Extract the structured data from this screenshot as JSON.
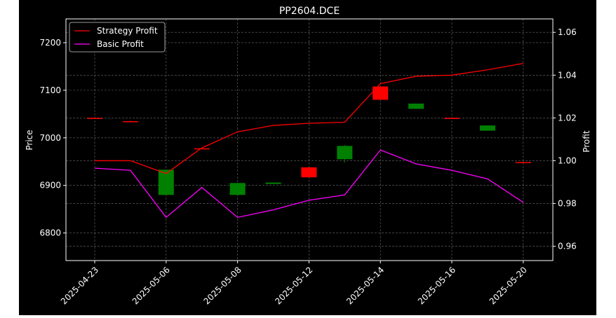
{
  "chart_data": {
    "type": "line",
    "title": "PP2604.DCE",
    "xlabel": "",
    "ylabel_left": "Price",
    "ylabel_right": "Profit",
    "x_tick_labels": [
      "2025-04-23",
      "2025-05-06",
      "2025-05-08",
      "2025-05-12",
      "2025-05-14",
      "2025-05-16",
      "2025-05-20"
    ],
    "ylim_left": [
      6742,
      7250
    ],
    "yticks_left": [
      6800,
      6900,
      7000,
      7100,
      7200
    ],
    "ylim_right": [
      0.9533,
      1.0663
    ],
    "yticks_right": [
      "0.96",
      "0.98",
      "1.00",
      "1.02",
      "1.04",
      "1.06"
    ],
    "grid": true,
    "legend_position": "top-left",
    "candles": [
      {
        "i": 0,
        "open": 7042,
        "close": 7042,
        "high": 7043,
        "low": 7041,
        "color": "#ff0000"
      },
      {
        "i": 1,
        "open": 7035,
        "close": 7035,
        "high": 7036,
        "low": 7034,
        "color": "#ff0000"
      },
      {
        "i": 2,
        "open": 6880,
        "close": 6933,
        "high": 6933,
        "low": 6880,
        "color": "#008000"
      },
      {
        "i": 3,
        "open": 6978,
        "close": 6978,
        "high": 6979,
        "low": 6977,
        "color": "#ff0000"
      },
      {
        "i": 4,
        "open": 6880,
        "close": 6905,
        "high": 6905,
        "low": 6880,
        "color": "#008000"
      },
      {
        "i": 5,
        "open": 6903,
        "close": 6906,
        "high": 6906,
        "low": 6903,
        "color": "#008000"
      },
      {
        "i": 6,
        "open": 6938,
        "close": 6917,
        "high": 6938,
        "low": 6917,
        "color": "#ff0000"
      },
      {
        "i": 7,
        "open": 6955,
        "close": 6983,
        "high": 6985,
        "low": 6948,
        "color": "#008000"
      },
      {
        "i": 8,
        "open": 7108,
        "close": 7080,
        "high": 7108,
        "low": 7080,
        "color": "#ff0000"
      },
      {
        "i": 9,
        "open": 7061,
        "close": 7072,
        "high": 7072,
        "low": 7061,
        "color": "#008000"
      },
      {
        "i": 10,
        "open": 7042,
        "close": 7042,
        "high": 7043,
        "low": 7041,
        "color": "#ff0000"
      },
      {
        "i": 11,
        "open": 7015,
        "close": 7026,
        "high": 7026,
        "low": 7015,
        "color": "#008000"
      },
      {
        "i": 12,
        "open": 6949,
        "close": 6949,
        "high": 6950,
        "low": 6948,
        "color": "#ff0000"
      }
    ],
    "series": [
      {
        "name": "Strategy Profit",
        "color": "#ff0000",
        "values": [
          1.0,
          1.0,
          0.994,
          1.006,
          1.0135,
          1.0165,
          1.0175,
          1.018,
          1.036,
          1.0395,
          1.04,
          1.0425,
          1.0455
        ]
      },
      {
        "name": "Basic Profit",
        "color": "#ff00ff",
        "values": [
          0.9965,
          0.9955,
          0.9735,
          0.9875,
          0.9735,
          0.977,
          0.9815,
          0.984,
          1.005,
          0.9985,
          0.9955,
          0.9915,
          0.9805
        ]
      }
    ]
  }
}
